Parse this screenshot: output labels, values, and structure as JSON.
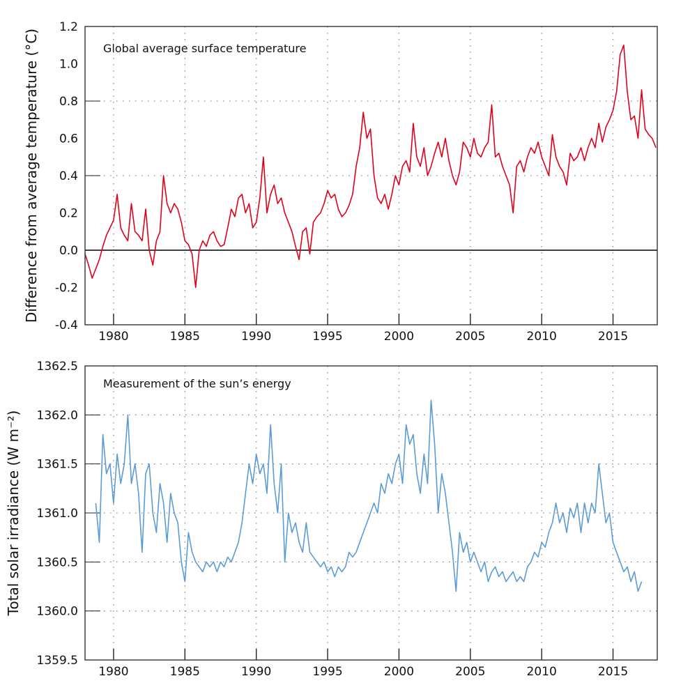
{
  "chart_data": [
    {
      "type": "line",
      "title": "Global average surface temperature",
      "xlabel": "",
      "ylabel": "Difference from average temperature (°C)",
      "xlim": [
        1978,
        2018.1
      ],
      "ylim": [
        -0.4,
        1.2
      ],
      "xticks": [
        1980,
        1985,
        1990,
        1995,
        2000,
        2005,
        2010,
        2015
      ],
      "xtick_labels": [
        "1980",
        "1985",
        "1990",
        "1995",
        "2000",
        "2005",
        "2010",
        "2015"
      ],
      "yticks": [
        -0.4,
        -0.2,
        0.0,
        0.2,
        0.4,
        0.6,
        0.8,
        1.0,
        1.2
      ],
      "ytick_labels": [
        "-0.4",
        "-0.2",
        "0.0",
        "0.2",
        "0.4",
        "0.6",
        "0.8",
        "1.0",
        "1.2"
      ],
      "grid": true,
      "reference_line": 0.0,
      "color": "#e0001b",
      "series": [
        {
          "name": "Global average surface temperature",
          "x_start": 1978.0,
          "x_step": 0.25,
          "values": [
            -0.02,
            -0.08,
            -0.15,
            -0.1,
            -0.05,
            0.02,
            0.08,
            0.12,
            0.16,
            0.3,
            0.12,
            0.08,
            0.05,
            0.25,
            0.1,
            0.08,
            0.05,
            0.22,
            0.0,
            -0.08,
            0.05,
            0.1,
            0.4,
            0.25,
            0.2,
            0.25,
            0.22,
            0.15,
            0.05,
            0.03,
            -0.02,
            -0.2,
            0.0,
            0.05,
            0.02,
            0.08,
            0.1,
            0.05,
            0.02,
            0.03,
            0.12,
            0.22,
            0.18,
            0.28,
            0.3,
            0.2,
            0.25,
            0.12,
            0.15,
            0.28,
            0.5,
            0.2,
            0.3,
            0.35,
            0.25,
            0.28,
            0.2,
            0.15,
            0.1,
            0.02,
            -0.05,
            0.1,
            0.12,
            -0.02,
            0.15,
            0.18,
            0.2,
            0.25,
            0.32,
            0.28,
            0.3,
            0.22,
            0.18,
            0.2,
            0.24,
            0.3,
            0.45,
            0.55,
            0.74,
            0.6,
            0.65,
            0.4,
            0.28,
            0.25,
            0.3,
            0.22,
            0.3,
            0.4,
            0.35,
            0.45,
            0.48,
            0.42,
            0.68,
            0.5,
            0.45,
            0.55,
            0.4,
            0.45,
            0.52,
            0.58,
            0.5,
            0.6,
            0.48,
            0.4,
            0.35,
            0.42,
            0.58,
            0.55,
            0.5,
            0.6,
            0.52,
            0.5,
            0.55,
            0.58,
            0.78,
            0.5,
            0.52,
            0.45,
            0.4,
            0.35,
            0.2,
            0.45,
            0.48,
            0.42,
            0.5,
            0.55,
            0.52,
            0.58,
            0.5,
            0.45,
            0.4,
            0.62,
            0.5,
            0.45,
            0.42,
            0.35,
            0.52,
            0.48,
            0.5,
            0.55,
            0.48,
            0.55,
            0.6,
            0.55,
            0.68,
            0.58,
            0.66,
            0.7,
            0.75,
            0.85,
            1.05,
            1.1,
            0.85,
            0.7,
            0.72,
            0.6,
            0.86,
            0.65,
            0.62,
            0.6,
            0.55
          ]
        }
      ]
    },
    {
      "type": "line",
      "title": "Measurement of the sun’s energy",
      "xlabel": "",
      "ylabel": "Total solar irradiance (W m⁻²)",
      "xlim": [
        1978,
        2018.1
      ],
      "ylim": [
        1359.5,
        1362.5
      ],
      "xticks": [
        1980,
        1985,
        1990,
        1995,
        2000,
        2005,
        2010,
        2015
      ],
      "xtick_labels": [
        "1980",
        "1985",
        "1990",
        "1995",
        "2000",
        "2005",
        "2010",
        "2015"
      ],
      "yticks": [
        1359.5,
        1360.0,
        1360.5,
        1361.0,
        1361.5,
        1362.0,
        1362.5
      ],
      "ytick_labels": [
        "1359.5",
        "1360.0",
        "1360.5",
        "1361.0",
        "1361.5",
        "1362.0",
        "1362.5"
      ],
      "grid": true,
      "color": "#5b9bd5",
      "series": [
        {
          "name": "Measurement of the sun’s energy",
          "x_start": 1978.75,
          "x_step": 0.25,
          "values": [
            1361.1,
            1360.7,
            1361.8,
            1361.4,
            1361.5,
            1361.1,
            1361.6,
            1361.3,
            1361.5,
            1362.0,
            1361.3,
            1361.5,
            1361.2,
            1360.6,
            1361.4,
            1361.5,
            1361.0,
            1360.8,
            1361.3,
            1361.1,
            1360.7,
            1361.2,
            1361.0,
            1360.9,
            1360.5,
            1360.3,
            1360.8,
            1360.6,
            1360.5,
            1360.45,
            1360.4,
            1360.5,
            1360.45,
            1360.5,
            1360.4,
            1360.5,
            1360.45,
            1360.55,
            1360.5,
            1360.6,
            1360.7,
            1360.9,
            1361.2,
            1361.5,
            1361.3,
            1361.6,
            1361.4,
            1361.5,
            1361.2,
            1361.9,
            1361.3,
            1361.0,
            1361.5,
            1360.5,
            1361.0,
            1360.8,
            1360.9,
            1360.7,
            1360.6,
            1360.9,
            1360.6,
            1360.55,
            1360.5,
            1360.45,
            1360.5,
            1360.4,
            1360.45,
            1360.35,
            1360.45,
            1360.4,
            1360.45,
            1360.6,
            1360.55,
            1360.6,
            1360.7,
            1360.8,
            1360.9,
            1361.0,
            1361.1,
            1361.0,
            1361.3,
            1361.2,
            1361.4,
            1361.3,
            1361.5,
            1361.6,
            1361.3,
            1361.9,
            1361.7,
            1361.8,
            1361.4,
            1361.2,
            1361.6,
            1361.3,
            1362.15,
            1361.7,
            1361.0,
            1361.4,
            1361.2,
            1360.9,
            1360.6,
            1360.2,
            1360.8,
            1360.6,
            1360.7,
            1360.5,
            1360.6,
            1360.5,
            1360.4,
            1360.5,
            1360.3,
            1360.4,
            1360.45,
            1360.35,
            1360.4,
            1360.3,
            1360.35,
            1360.4,
            1360.3,
            1360.35,
            1360.3,
            1360.45,
            1360.5,
            1360.6,
            1360.55,
            1360.7,
            1360.65,
            1360.8,
            1360.9,
            1361.1,
            1360.9,
            1361.0,
            1360.8,
            1361.05,
            1360.95,
            1361.1,
            1360.8,
            1361.1,
            1360.9,
            1361.1,
            1361.0,
            1361.5,
            1361.2,
            1360.9,
            1361.0,
            1360.7,
            1360.6,
            1360.5,
            1360.4,
            1360.45,
            1360.3,
            1360.4,
            1360.2,
            1360.3
          ]
        }
      ]
    }
  ]
}
